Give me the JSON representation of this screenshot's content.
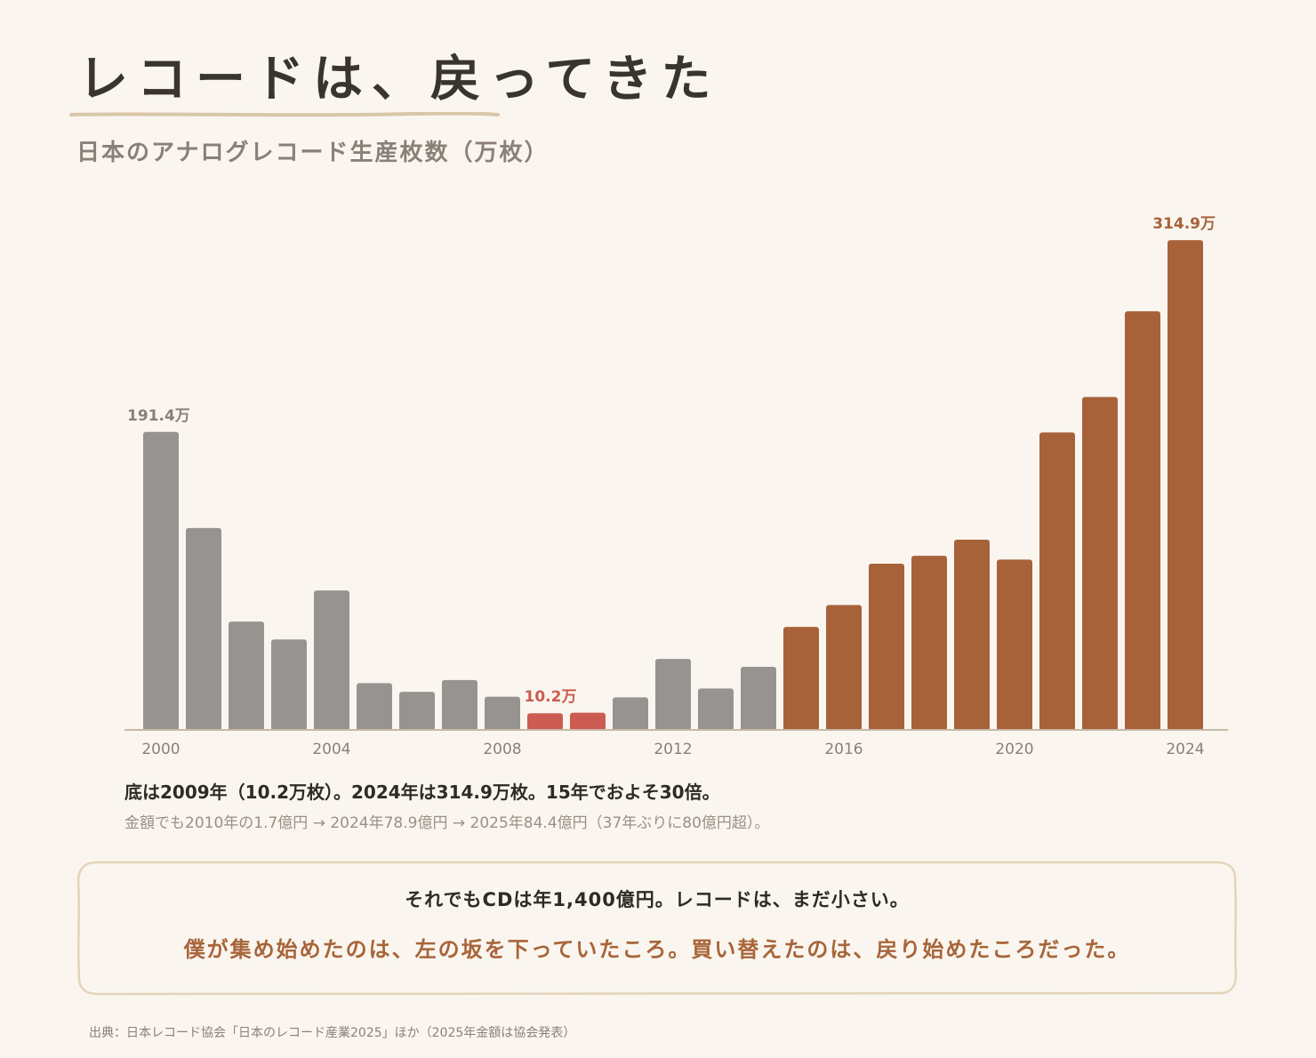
{
  "title": "レコードは、戻ってきた",
  "subtitle": "日本のアナログレコード生産枚数（万枚）",
  "colors": {
    "background": "#faf6ef",
    "bar_gray": "#979390",
    "bar_low": "#cc5b52",
    "bar_rise": "#a8623a",
    "axis": "#c7b9a8",
    "underline": "#d9c6a8",
    "callout_border": "#e3d3bb"
  },
  "chart_data": {
    "type": "bar",
    "categories": [
      "2000",
      "2001",
      "2002",
      "2003",
      "2004",
      "2005",
      "2006",
      "2007",
      "2008",
      "2009",
      "2010",
      "2011",
      "2012",
      "2013",
      "2014",
      "2015",
      "2016",
      "2017",
      "2018",
      "2019",
      "2020",
      "2021",
      "2022",
      "2023",
      "2024"
    ],
    "values": [
      191.4,
      129.5,
      69.2,
      57.7,
      89.3,
      29.6,
      24.0,
      31.6,
      20.8,
      10.2,
      10.5,
      20.4,
      45.2,
      26.1,
      40.1,
      65.8,
      79.9,
      106.5,
      111.6,
      122.0,
      109.2,
      191.1,
      213.9,
      269.1,
      314.9
    ],
    "series_group": [
      "gray",
      "gray",
      "gray",
      "gray",
      "gray",
      "gray",
      "gray",
      "gray",
      "gray",
      "low",
      "low",
      "gray",
      "gray",
      "gray",
      "gray",
      "rise",
      "rise",
      "rise",
      "rise",
      "rise",
      "rise",
      "rise",
      "rise",
      "rise",
      "rise"
    ],
    "x_tick_labels": [
      "2000",
      "2004",
      "2008",
      "2012",
      "2016",
      "2020",
      "2024"
    ],
    "data_labels": [
      {
        "category": "2000",
        "text": "191.4万"
      },
      {
        "category": "2009",
        "text": "10.2万"
      },
      {
        "category": "2024",
        "text": "314.9万"
      }
    ],
    "ylim": [
      0,
      315
    ],
    "grid": false,
    "xlabel": "",
    "ylabel": ""
  },
  "summary": "底は2009年（10.2万枚）。2024年は314.9万枚。15年でおよそ30倍。",
  "detail": "金額でも2010年の1.7億円 → 2024年78.9億円 → 2025年84.4億円（37年ぶりに80億円超）。",
  "callout": {
    "line1": "それでもCDは年1,400億円。レコードは、まだ小さい。",
    "line2": "僕が集め始めたのは、左の坂を下っていたころ。買い替えたのは、戻り始めたころだった。"
  },
  "source": "出典：日本レコード協会「日本のレコード産業2025」ほか（2025年金額は協会発表）"
}
